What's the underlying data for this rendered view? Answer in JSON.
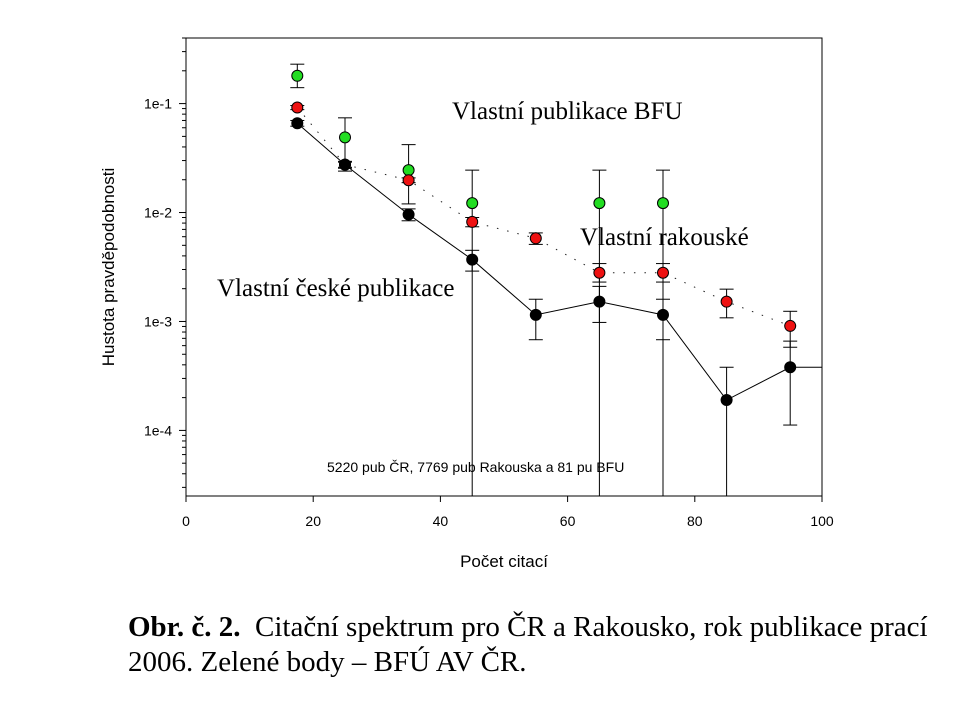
{
  "chart_data": {
    "type": "scatter",
    "xlabel": "Počet citací",
    "ylabel": "Hustota pravděpodobnosti",
    "xlim": [
      0,
      100
    ],
    "ylim": [
      2.5e-05,
      0.4
    ],
    "yscale": "log",
    "x_ticks": [
      "0",
      "20",
      "40",
      "60",
      "80",
      "100"
    ],
    "y_ticks": [
      {
        "value": 0.1,
        "label": "1e-1"
      },
      {
        "value": 0.01,
        "label": "1e-2"
      },
      {
        "value": 0.001,
        "label": "1e-3"
      },
      {
        "value": 0.0001,
        "label": "1e-4"
      }
    ],
    "grid": false,
    "series": [
      {
        "color": "#22dd22",
        "line": "none",
        "points": [
          {
            "x": 17.5,
            "y": 0.18,
            "lo": 0.14,
            "hi": 0.23
          },
          {
            "x": 25,
            "y": 0.049,
            "lo": 0.024,
            "hi": 0.074
          },
          {
            "x": 35,
            "y": 0.0245,
            "lo": 0.012,
            "hi": 0.042
          },
          {
            "x": 45,
            "y": 0.0122,
            "lo": 0,
            "hi": 0.0245
          },
          {
            "x": 65,
            "y": 0.0122,
            "lo": 0,
            "hi": 0.0245
          },
          {
            "x": 75,
            "y": 0.0122,
            "lo": 0,
            "hi": 0.0245
          }
        ]
      },
      {
        "color": "#ee1111",
        "line": "dotted",
        "points": [
          {
            "x": 17.5,
            "y": 0.092,
            "lo": 0.088,
            "hi": 0.096
          },
          {
            "x": 25,
            "y": 0.0275,
            "lo": 0.026,
            "hi": 0.029
          },
          {
            "x": 35,
            "y": 0.0198,
            "lo": 0.0188,
            "hi": 0.0208
          },
          {
            "x": 45,
            "y": 0.0082,
            "lo": 0.0074,
            "hi": 0.009
          },
          {
            "x": 55,
            "y": 0.0058,
            "lo": 0.0051,
            "hi": 0.0065
          },
          {
            "x": 65,
            "y": 0.0028,
            "lo": 0.0023,
            "hi": 0.0034
          },
          {
            "x": 75,
            "y": 0.0028,
            "lo": 0.0023,
            "hi": 0.0034
          },
          {
            "x": 85,
            "y": 0.00152,
            "lo": 0.00108,
            "hi": 0.00198
          },
          {
            "x": 95,
            "y": 0.00091,
            "lo": 0.00058,
            "hi": 0.00124
          }
        ]
      },
      {
        "color": "#000000",
        "line": "solid",
        "points": [
          {
            "x": 17.5,
            "y": 0.066,
            "lo": 0.062,
            "hi": 0.07
          },
          {
            "x": 25,
            "y": 0.0275,
            "lo": 0.0255,
            "hi": 0.0295
          },
          {
            "x": 35,
            "y": 0.0096,
            "lo": 0.0084,
            "hi": 0.0108
          },
          {
            "x": 45,
            "y": 0.0037,
            "lo": 0.0029,
            "hi": 0.0045
          },
          {
            "x": 55,
            "y": 0.00115,
            "lo": 0.00068,
            "hi": 0.0016
          },
          {
            "x": 65,
            "y": 0.00152,
            "lo": 0.00098,
            "hi": 0.0021
          },
          {
            "x": 75,
            "y": 0.00115,
            "lo": 0.00068,
            "hi": 0.0016
          },
          {
            "x": 85,
            "y": 0.00019,
            "lo": 0,
            "hi": 0.00038
          },
          {
            "x": 95,
            "y": 0.00038,
            "lo": 0.000112,
            "hi": 0.00066
          }
        ]
      }
    ],
    "annotations": [
      {
        "text": "Vlastní publikace BFU"
      },
      {
        "text": "Vlastní rakouské"
      },
      {
        "text": "Vlastní české publikace"
      },
      {
        "text": "5220 pub ČR, 7769 pub Rakouska a 81 pu BFU"
      }
    ]
  },
  "caption": {
    "label": "Obr. č. 2.",
    "text": "Citační spektrum pro ČR a Rakousko, rok publikace prací 2006. Zelené body – BFÚ AV ČR."
  }
}
